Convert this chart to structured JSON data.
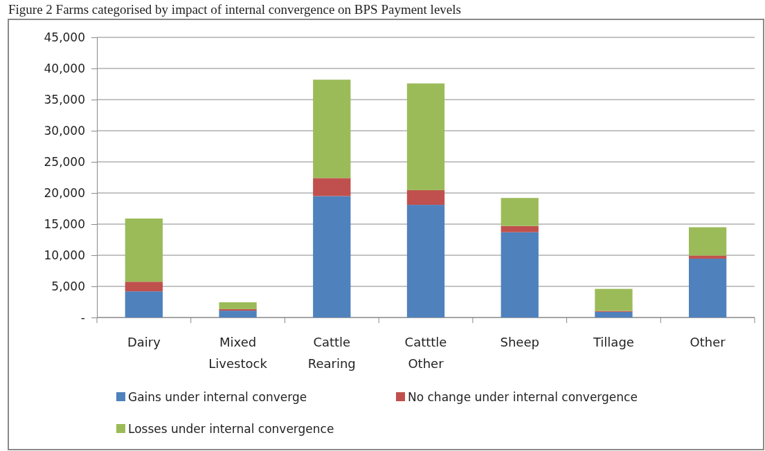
{
  "chart_data": {
    "type": "bar",
    "title": "Figure 2 Farms categorised by impact of internal convergence on BPS Payment levels",
    "categories": [
      "Dairy",
      "Mixed Livestock",
      "Cattle Rearing",
      "Catttle Other",
      "Sheep",
      "Tillage",
      "Other"
    ],
    "stacked": true,
    "series": [
      {
        "name": "Gains under internal converge",
        "color": "#4f81bd",
        "values": [
          4200,
          1100,
          19500,
          18100,
          13700,
          900,
          9450
        ]
      },
      {
        "name": "No change under internal convergence",
        "color": "#c0504d",
        "values": [
          1550,
          250,
          2900,
          2350,
          1000,
          150,
          500
        ]
      },
      {
        "name": "Losses under internal convergence",
        "color": "#9bbb59",
        "values": [
          10150,
          1100,
          15800,
          17150,
          4500,
          3550,
          4550
        ]
      }
    ],
    "ylim": [
      0,
      45000
    ],
    "yticks": [
      {
        "value": 0,
        "label": "-"
      },
      {
        "value": 5000,
        "label": "5,000"
      },
      {
        "value": 10000,
        "label": "10,000"
      },
      {
        "value": 15000,
        "label": "15,000"
      },
      {
        "value": 20000,
        "label": "20,000"
      },
      {
        "value": 25000,
        "label": "25,000"
      },
      {
        "value": 30000,
        "label": "30,000"
      },
      {
        "value": 35000,
        "label": "35,000"
      },
      {
        "value": 40000,
        "label": "40,000"
      },
      {
        "value": 45000,
        "label": "45,000"
      }
    ],
    "grid": "y",
    "legend": "bottom"
  }
}
